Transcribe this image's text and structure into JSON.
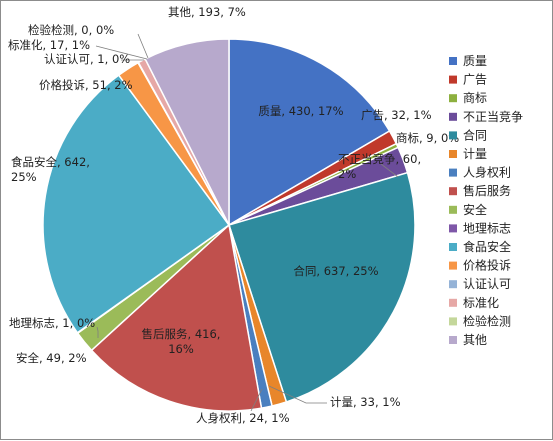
{
  "chart_data": {
    "type": "pie",
    "title": "",
    "legend_position": "right",
    "slices": [
      {
        "name": "质量",
        "value": 430,
        "percent": "17%",
        "color": "#4472C4",
        "label_lines": [
          "质量, 430, 17%"
        ]
      },
      {
        "name": "广告",
        "value": 32,
        "percent": "1%",
        "color": "#C0392B",
        "label_lines": [
          "广告, 32, 1%"
        ]
      },
      {
        "name": "商标",
        "value": 9,
        "percent": "0%",
        "color": "#8DB03F",
        "label_lines": [
          "商标, 9, 0%"
        ]
      },
      {
        "name": "不正当竞争",
        "value": 60,
        "percent": "2%",
        "color": "#6B4C9A",
        "label_lines": [
          "不正当竞争, 60,",
          "2%"
        ]
      },
      {
        "name": "合同",
        "value": 637,
        "percent": "25%",
        "color": "#2E8B9E",
        "label_lines": [
          "合同, 637, 25%"
        ]
      },
      {
        "name": "计量",
        "value": 33,
        "percent": "1%",
        "color": "#E8862A",
        "label_lines": [
          "计量, 33, 1%"
        ]
      },
      {
        "name": "人身权利",
        "value": 24,
        "percent": "1%",
        "color": "#4A7FBF",
        "label_lines": [
          "人身权利, 24, 1%"
        ]
      },
      {
        "name": "售后服务",
        "value": 416,
        "percent": "16%",
        "color": "#C0504D",
        "label_lines": [
          "售后服务, 416,",
          "16%"
        ]
      },
      {
        "name": "安全",
        "value": 49,
        "percent": "2%",
        "color": "#9BBB59",
        "label_lines": [
          "安全, 49, 2%"
        ]
      },
      {
        "name": "地理标志",
        "value": 1,
        "percent": "0%",
        "color": "#7E57A8",
        "label_lines": [
          "地理标志, 1, 0%"
        ]
      },
      {
        "name": "食品安全",
        "value": 642,
        "percent": "25%",
        "color": "#4BACC6",
        "label_lines": [
          "食品安全, 642,",
          "25%"
        ]
      },
      {
        "name": "价格投诉",
        "value": 51,
        "percent": "2%",
        "color": "#F79646",
        "label_lines": [
          "价格投诉, 51, 2%"
        ]
      },
      {
        "name": "认证认可",
        "value": 1,
        "percent": "0%",
        "color": "#95B3D7",
        "label_lines": [
          "认证认可, 1, 0%"
        ]
      },
      {
        "name": "标准化",
        "value": 17,
        "percent": "1%",
        "color": "#E6A8A6",
        "label_lines": [
          "标准化, 17, 1%"
        ]
      },
      {
        "name": "检验检测",
        "value": 0,
        "percent": "0%",
        "color": "#C4D79B",
        "label_lines": [
          "检验检测, 0, 0%"
        ]
      },
      {
        "name": "其他",
        "value": 193,
        "percent": "7%",
        "color": "#B7A9CC",
        "label_lines": [
          "其他, 193, 7%"
        ]
      }
    ]
  }
}
